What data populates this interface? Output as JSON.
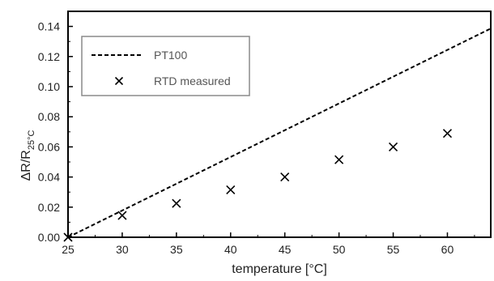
{
  "chart_data": {
    "type": "scatter",
    "xlabel": "temperature [°C]",
    "ylabel": {
      "main": "ΔR/R",
      "sub": "25°C"
    },
    "xlim": [
      25,
      64
    ],
    "ylim": [
      0,
      0.15
    ],
    "xticks": [
      25,
      30,
      35,
      40,
      45,
      50,
      55,
      60
    ],
    "yticks": [
      0.0,
      0.02,
      0.04,
      0.06,
      0.08,
      0.1,
      0.12,
      0.14
    ],
    "grid": false,
    "legend_position": "top-left",
    "series": [
      {
        "name": "PT100",
        "kind": "line",
        "style": "dashed",
        "color": "#000000",
        "x": [
          25,
          64
        ],
        "y": [
          0.0,
          0.1386
        ]
      },
      {
        "name": "RTD measured",
        "kind": "markers",
        "marker": "x",
        "color": "#000000",
        "x": [
          25,
          30,
          35,
          40,
          45,
          50,
          55,
          60
        ],
        "y": [
          0.0,
          0.0145,
          0.0225,
          0.0315,
          0.04,
          0.0515,
          0.06,
          0.069
        ]
      }
    ]
  }
}
